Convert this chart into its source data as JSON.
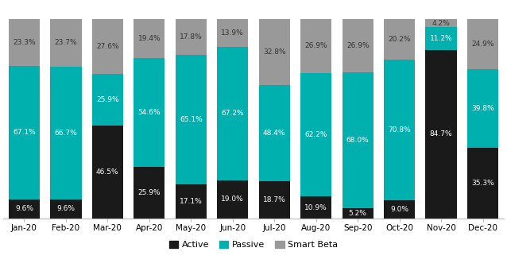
{
  "months": [
    "Jan-20",
    "Feb-20",
    "Mar-20",
    "Apr-20",
    "May-20",
    "Jun-20",
    "Jul-20",
    "Aug-20",
    "Sep-20",
    "Oct-20",
    "Nov-20",
    "Dec-20"
  ],
  "active": [
    9.6,
    9.6,
    46.5,
    25.9,
    17.1,
    19.0,
    18.7,
    10.9,
    5.2,
    9.0,
    84.7,
    35.3
  ],
  "passive": [
    67.1,
    66.7,
    25.9,
    54.6,
    65.1,
    67.2,
    48.4,
    62.2,
    68.0,
    70.8,
    11.2,
    39.8
  ],
  "smart_beta": [
    23.3,
    23.7,
    27.6,
    19.4,
    17.8,
    13.9,
    32.8,
    26.9,
    26.9,
    20.2,
    4.2,
    24.9
  ],
  "color_active": "#1a1a1a",
  "color_passive": "#00b0ae",
  "color_smart_beta": "#999999",
  "bar_width": 0.75,
  "bg_color": "#ffffff"
}
